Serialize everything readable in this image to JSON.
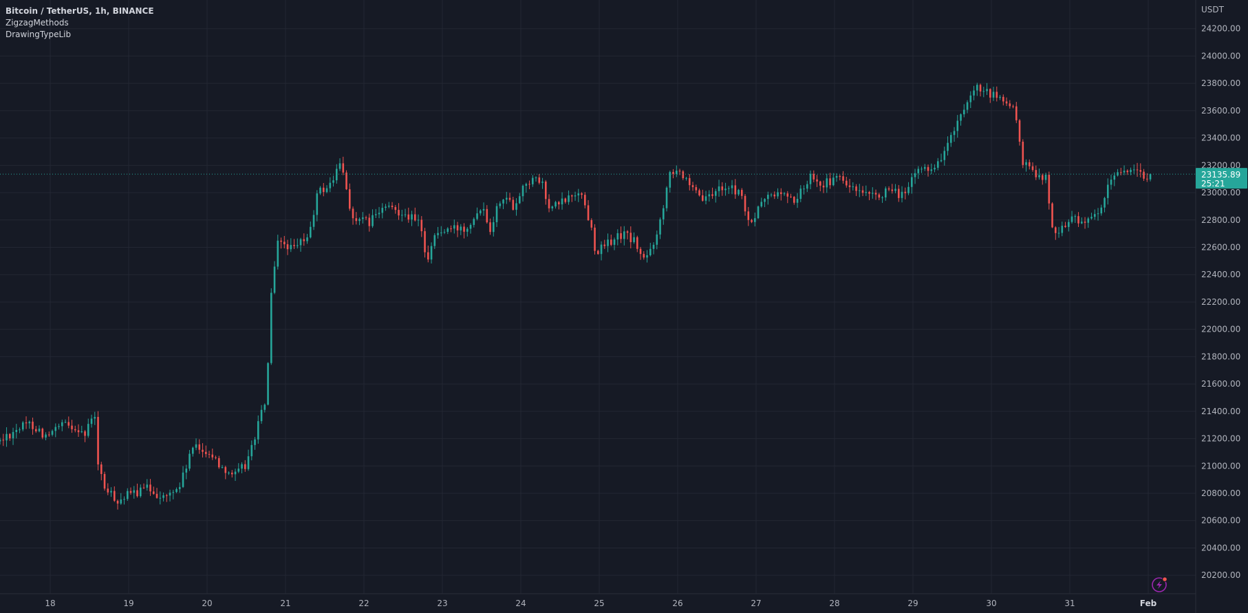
{
  "header": {
    "title": "Bitcoin / TetherUS, 1h, BINANCE",
    "indicators": [
      "ZigzagMethods",
      "DrawingTypeLib"
    ]
  },
  "axis": {
    "currency": "USDT"
  },
  "colors": {
    "background": "#161a25",
    "grid": "#232733",
    "up": "#26a69a",
    "down": "#ef5350",
    "text": "#b2b5be",
    "price_line": "#26a69a"
  },
  "icons": {
    "bottom_right": "lightning-bolt-icon"
  },
  "chart_data": {
    "type": "candlestick",
    "symbol": "Bitcoin / TetherUS",
    "interval": "1h",
    "exchange": "BINANCE",
    "y_ticks": [
      20200,
      20400,
      20600,
      20800,
      21000,
      21200,
      21400,
      21600,
      21800,
      22000,
      22200,
      22400,
      22600,
      22800,
      23000,
      23200,
      23400,
      23600,
      23800,
      24000,
      24200
    ],
    "ylim": [
      20065,
      24410
    ],
    "x_ticks": [
      "18",
      "19",
      "20",
      "21",
      "22",
      "23",
      "24",
      "25",
      "26",
      "27",
      "28",
      "29",
      "30",
      "31",
      "Feb"
    ],
    "x_tick_bold": "Feb",
    "last_price": {
      "value": 23135.89,
      "label": "23135.89",
      "countdown": "25:21"
    },
    "anchors": [
      {
        "day": 17.4,
        "price": 21180
      },
      {
        "day": 17.6,
        "price": 21270
      },
      {
        "day": 17.8,
        "price": 21310
      },
      {
        "day": 18.0,
        "price": 21210
      },
      {
        "day": 18.2,
        "price": 21300
      },
      {
        "day": 18.4,
        "price": 21280
      },
      {
        "day": 18.5,
        "price": 21220
      },
      {
        "day": 18.6,
        "price": 21430
      },
      {
        "day": 18.65,
        "price": 21000
      },
      {
        "day": 18.75,
        "price": 20820
      },
      {
        "day": 18.9,
        "price": 20750
      },
      {
        "day": 19.1,
        "price": 20800
      },
      {
        "day": 19.3,
        "price": 20840
      },
      {
        "day": 19.5,
        "price": 20760
      },
      {
        "day": 19.7,
        "price": 20860
      },
      {
        "day": 19.85,
        "price": 21130
      },
      {
        "day": 20.05,
        "price": 21110
      },
      {
        "day": 20.2,
        "price": 21010
      },
      {
        "day": 20.4,
        "price": 20930
      },
      {
        "day": 20.55,
        "price": 21020
      },
      {
        "day": 20.7,
        "price": 21320
      },
      {
        "day": 20.8,
        "price": 21500
      },
      {
        "day": 20.85,
        "price": 22200
      },
      {
        "day": 20.95,
        "price": 22650
      },
      {
        "day": 21.15,
        "price": 22580
      },
      {
        "day": 21.35,
        "price": 22700
      },
      {
        "day": 21.45,
        "price": 23000
      },
      {
        "day": 21.6,
        "price": 23050
      },
      {
        "day": 21.75,
        "price": 23220
      },
      {
        "day": 21.9,
        "price": 22800
      },
      {
        "day": 22.1,
        "price": 22780
      },
      {
        "day": 22.3,
        "price": 22890
      },
      {
        "day": 22.55,
        "price": 22860
      },
      {
        "day": 22.75,
        "price": 22770
      },
      {
        "day": 22.85,
        "price": 22510
      },
      {
        "day": 22.95,
        "price": 22700
      },
      {
        "day": 23.15,
        "price": 22730
      },
      {
        "day": 23.35,
        "price": 22750
      },
      {
        "day": 23.55,
        "price": 22920
      },
      {
        "day": 23.65,
        "price": 22740
      },
      {
        "day": 23.8,
        "price": 22990
      },
      {
        "day": 23.95,
        "price": 22900
      },
      {
        "day": 24.1,
        "price": 23080
      },
      {
        "day": 24.3,
        "price": 23090
      },
      {
        "day": 24.4,
        "price": 22880
      },
      {
        "day": 24.6,
        "price": 22940
      },
      {
        "day": 24.8,
        "price": 23020
      },
      {
        "day": 24.95,
        "price": 22720
      },
      {
        "day": 25.0,
        "price": 22560
      },
      {
        "day": 25.2,
        "price": 22650
      },
      {
        "day": 25.35,
        "price": 22700
      },
      {
        "day": 25.5,
        "price": 22640
      },
      {
        "day": 25.6,
        "price": 22500
      },
      {
        "day": 25.7,
        "price": 22580
      },
      {
        "day": 25.85,
        "price": 22850
      },
      {
        "day": 25.92,
        "price": 23150
      },
      {
        "day": 26.05,
        "price": 23190
      },
      {
        "day": 26.2,
        "price": 23020
      },
      {
        "day": 26.4,
        "price": 22940
      },
      {
        "day": 26.6,
        "price": 23050
      },
      {
        "day": 26.85,
        "price": 23000
      },
      {
        "day": 26.95,
        "price": 22750
      },
      {
        "day": 27.15,
        "price": 22960
      },
      {
        "day": 27.35,
        "price": 23000
      },
      {
        "day": 27.55,
        "price": 22940
      },
      {
        "day": 27.75,
        "price": 23140
      },
      {
        "day": 27.9,
        "price": 23060
      },
      {
        "day": 28.1,
        "price": 23110
      },
      {
        "day": 28.3,
        "price": 23010
      },
      {
        "day": 28.5,
        "price": 22960
      },
      {
        "day": 28.7,
        "price": 23000
      },
      {
        "day": 28.95,
        "price": 22990
      },
      {
        "day": 29.1,
        "price": 23170
      },
      {
        "day": 29.35,
        "price": 23200
      },
      {
        "day": 29.5,
        "price": 23380
      },
      {
        "day": 29.6,
        "price": 23490
      },
      {
        "day": 29.75,
        "price": 23650
      },
      {
        "day": 29.85,
        "price": 23760
      },
      {
        "day": 30.0,
        "price": 23720
      },
      {
        "day": 30.2,
        "price": 23680
      },
      {
        "day": 30.35,
        "price": 23580
      },
      {
        "day": 30.45,
        "price": 23200
      },
      {
        "day": 30.6,
        "price": 23150
      },
      {
        "day": 30.75,
        "price": 23110
      },
      {
        "day": 30.8,
        "price": 22720
      },
      {
        "day": 30.95,
        "price": 22750
      },
      {
        "day": 31.1,
        "price": 22820
      },
      {
        "day": 31.3,
        "price": 22780
      },
      {
        "day": 31.45,
        "price": 22880
      },
      {
        "day": 31.55,
        "price": 23080
      },
      {
        "day": 31.7,
        "price": 23180
      },
      {
        "day": 31.85,
        "price": 23150
      },
      {
        "day": 31.95,
        "price": 23120
      },
      {
        "day": 32.05,
        "price": 23135.89
      }
    ]
  }
}
